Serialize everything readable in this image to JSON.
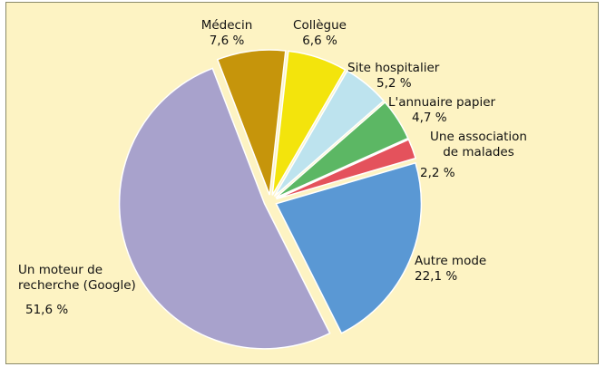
{
  "chart_data": {
    "type": "pie",
    "categories": [
      "Médecin",
      "Collègue",
      "Site hospitalier",
      "L'annuaire papier",
      "Une association de malades",
      "Autre mode",
      "Un moteur de recherche (Google)"
    ],
    "values": [
      7.6,
      6.6,
      5.2,
      4.7,
      2.2,
      22.1,
      51.6
    ],
    "value_labels": [
      "7,6 %",
      "6,6 %",
      "5,2 %",
      "4,7 %",
      "2,2 %",
      "22,1 %",
      "51,6 %"
    ],
    "colors": [
      "#c6950b",
      "#f3e40c",
      "#bde3ee",
      "#5cb764",
      "#e4525c",
      "#5a98d4",
      "#a8a2cc"
    ]
  }
}
